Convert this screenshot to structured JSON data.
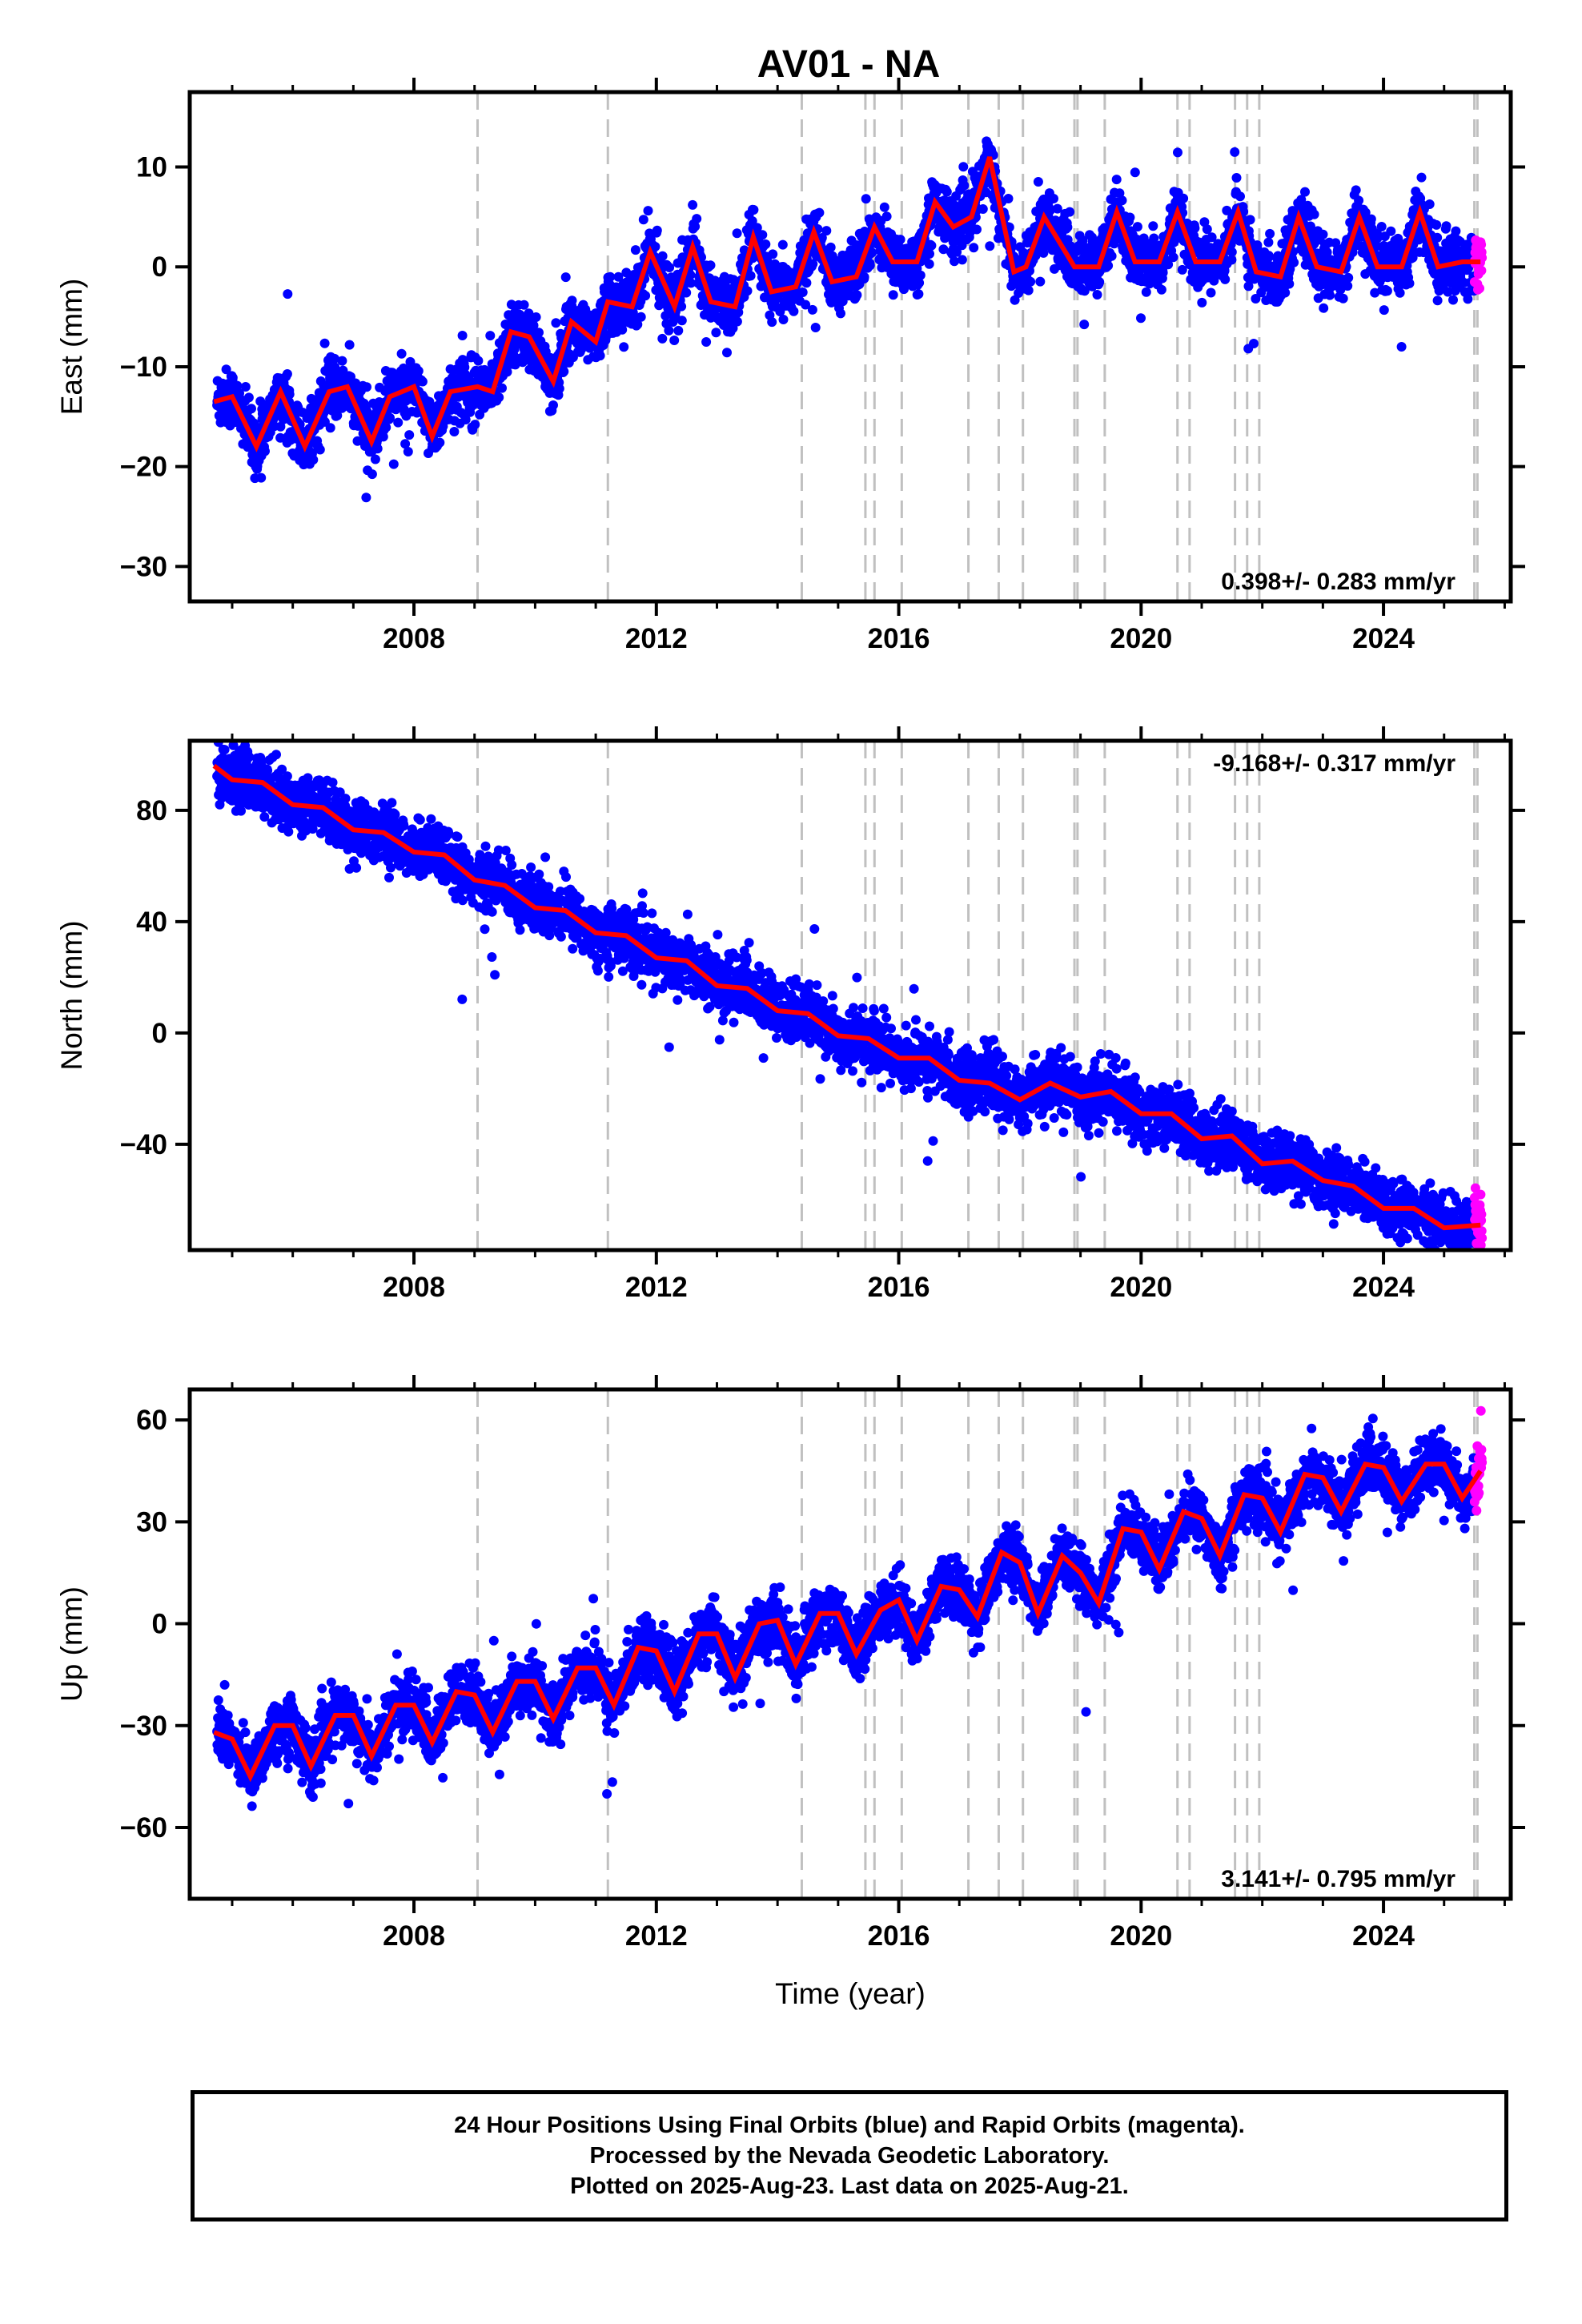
{
  "title": "AV01 - NA",
  "xlabel": "Time (year)",
  "caption": {
    "line1": "24 Hour Positions Using Final Orbits (blue) and Rapid Orbits (magenta).",
    "line2": "Processed by the Nevada Geodetic Laboratory.",
    "line3": "Plotted on 2025-Aug-23. Last data on 2025-Aug-21."
  },
  "colors": {
    "final_orbits": "#0000ff",
    "rapid_orbits": "#ff00ff",
    "model": "#ff0000",
    "equipment_change_lines": "#c0c0c0"
  },
  "chart_data": [
    {
      "type": "scatter",
      "component": "east",
      "ylabel": "East (mm)",
      "xlim": [
        2004.3,
        2026.1
      ],
      "ylim": [
        -33.5,
        17.5
      ],
      "xticks": [
        2008,
        2012,
        2016,
        2020,
        2024
      ],
      "yticks": [
        -30,
        -20,
        -10,
        0,
        10
      ],
      "rate_label": "0.398+/- 0.283 mm/yr",
      "rate_label_position": "bottom-right",
      "model": {
        "x": [
          2004.7,
          2005.0,
          2005.4,
          2005.8,
          2006.2,
          2006.6,
          2006.9,
          2007.3,
          2007.6,
          2008.0,
          2008.3,
          2008.6,
          2009.05,
          2009.3,
          2009.6,
          2009.9,
          2010.3,
          2010.6,
          2011.0,
          2011.2,
          2011.6,
          2011.9,
          2012.3,
          2012.6,
          2012.9,
          2013.3,
          2013.6,
          2013.9,
          2014.3,
          2014.6,
          2014.9,
          2015.3,
          2015.6,
          2015.9,
          2016.3,
          2016.6,
          2016.9,
          2017.2,
          2017.5,
          2017.9,
          2018.1,
          2018.4,
          2018.9,
          2019.3,
          2019.6,
          2019.9,
          2020.3,
          2020.6,
          2020.9,
          2021.3,
          2021.6,
          2021.9,
          2022.3,
          2022.6,
          2022.9,
          2023.3,
          2023.6,
          2023.9,
          2024.3,
          2024.6,
          2024.9,
          2025.3,
          2025.6
        ],
        "y": [
          -13.5,
          -13.0,
          -18.0,
          -12.5,
          -18.0,
          -12.5,
          -12.0,
          -17.5,
          -13.0,
          -12.0,
          -17.0,
          -12.5,
          -12.0,
          -12.5,
          -6.5,
          -7.0,
          -11.5,
          -5.5,
          -7.5,
          -3.5,
          -4.0,
          1.5,
          -4.0,
          2.0,
          -3.5,
          -4.0,
          3.0,
          -2.5,
          -2.0,
          3.5,
          -1.5,
          -1.0,
          4.0,
          0.5,
          0.5,
          6.5,
          4.0,
          5.0,
          11.0,
          -0.5,
          0.0,
          5.0,
          0.0,
          0.0,
          5.5,
          0.5,
          0.5,
          5.5,
          0.5,
          0.5,
          5.5,
          -0.5,
          -1.0,
          5.0,
          0.0,
          -0.5,
          5.0,
          0.0,
          0.0,
          5.5,
          0.0,
          0.5,
          0.5
        ]
      }
    },
    {
      "type": "scatter",
      "component": "north",
      "ylabel": "North (mm)",
      "xlim": [
        2004.3,
        2026.1
      ],
      "ylim": [
        -78,
        105
      ],
      "xticks": [
        2008,
        2012,
        2016,
        2020,
        2024
      ],
      "yticks": [
        -40,
        0,
        40,
        80
      ],
      "rate_label": "-9.168+/- 0.317 mm/yr",
      "rate_label_position": "top-right",
      "model": {
        "x": [
          2004.7,
          2005.0,
          2005.5,
          2006.0,
          2006.5,
          2007.0,
          2007.5,
          2008.0,
          2008.5,
          2009.0,
          2009.5,
          2010.0,
          2010.5,
          2011.0,
          2011.5,
          2012.0,
          2012.5,
          2013.0,
          2013.5,
          2014.0,
          2014.5,
          2015.0,
          2015.5,
          2016.0,
          2016.5,
          2017.0,
          2017.5,
          2018.0,
          2018.5,
          2019.0,
          2019.5,
          2020.0,
          2020.5,
          2021.0,
          2021.5,
          2022.0,
          2022.5,
          2023.0,
          2023.5,
          2024.0,
          2024.5,
          2025.0,
          2025.6
        ],
        "y": [
          96,
          91,
          90,
          82,
          81,
          73,
          72,
          65,
          64,
          55,
          53,
          45,
          44,
          36,
          35,
          27,
          26,
          17,
          16,
          8,
          7,
          -1,
          -2,
          -9,
          -9,
          -17,
          -18,
          -24,
          -18,
          -23,
          -21,
          -29,
          -29,
          -38,
          -37,
          -47,
          -46,
          -53,
          -55,
          -63,
          -63,
          -70,
          -69
        ]
      }
    },
    {
      "type": "scatter",
      "component": "up",
      "ylabel": "Up (mm)",
      "xlim": [
        2004.3,
        2026.1
      ],
      "ylim": [
        -81,
        69
      ],
      "xticks": [
        2008,
        2012,
        2016,
        2020,
        2024
      ],
      "yticks": [
        -60,
        -30,
        0,
        30,
        60
      ],
      "rate_label": "3.141+/- 0.795 mm/yr",
      "rate_label_position": "bottom-right",
      "model": {
        "x": [
          2004.7,
          2005.0,
          2005.3,
          2005.7,
          2006.0,
          2006.3,
          2006.7,
          2007.0,
          2007.3,
          2007.7,
          2008.0,
          2008.3,
          2008.7,
          2009.0,
          2009.3,
          2009.7,
          2010.0,
          2010.3,
          2010.7,
          2011.0,
          2011.3,
          2011.7,
          2012.0,
          2012.3,
          2012.7,
          2013.0,
          2013.3,
          2013.7,
          2014.0,
          2014.3,
          2014.7,
          2015.0,
          2015.3,
          2015.7,
          2016.0,
          2016.3,
          2016.7,
          2017.0,
          2017.3,
          2017.7,
          2018.0,
          2018.3,
          2018.7,
          2019.0,
          2019.3,
          2019.7,
          2020.0,
          2020.3,
          2020.7,
          2021.0,
          2021.3,
          2021.7,
          2022.0,
          2022.3,
          2022.7,
          2023.0,
          2023.3,
          2023.7,
          2024.0,
          2024.3,
          2024.7,
          2025.0,
          2025.3,
          2025.6
        ],
        "y": [
          -32,
          -34,
          -45,
          -30,
          -30,
          -42,
          -27,
          -27,
          -39,
          -24,
          -24,
          -35,
          -20,
          -21,
          -32,
          -17,
          -17,
          -28,
          -13,
          -13,
          -24,
          -7,
          -8,
          -20,
          -3,
          -3,
          -16,
          0,
          1,
          -12,
          3,
          3,
          -9,
          4,
          7,
          -5,
          11,
          10,
          2,
          21,
          18,
          3,
          20,
          15,
          6,
          28,
          27,
          16,
          33,
          31,
          20,
          38,
          37,
          27,
          44,
          43,
          33,
          47,
          46,
          36,
          47,
          47,
          37,
          45
        ]
      }
    }
  ],
  "equipment_change_years": [
    2009.05,
    2011.2,
    2014.4,
    2015.45,
    2015.6,
    2016.05,
    2017.15,
    2017.65,
    2018.05,
    2018.9,
    2018.95,
    2019.4,
    2020.6,
    2020.8,
    2021.55,
    2021.75,
    2021.95,
    2025.5,
    2025.55
  ]
}
